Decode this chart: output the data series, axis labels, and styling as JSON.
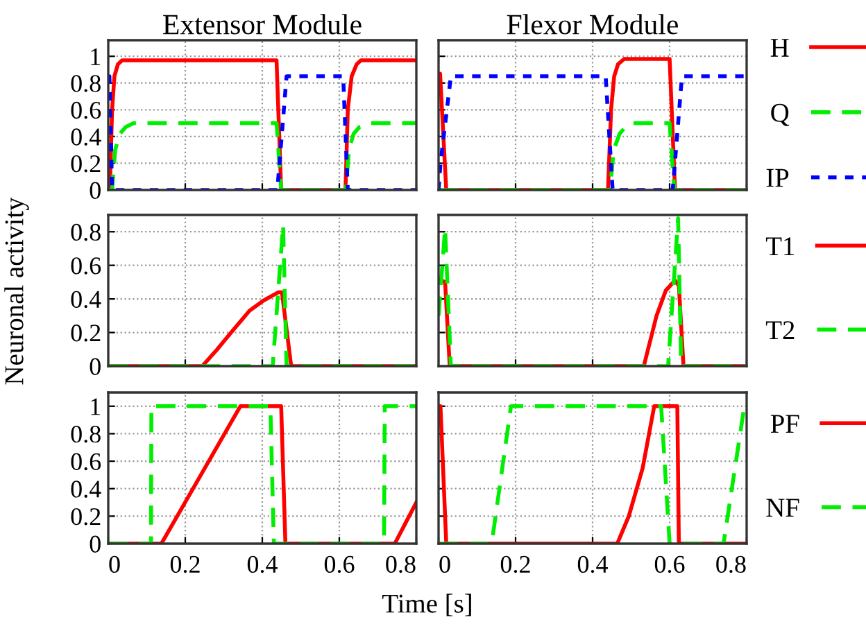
{
  "chart_data": [
    {
      "type": "line",
      "title": "Extensor Module",
      "xlim": [
        0,
        0.8
      ],
      "xticks": [
        0,
        0.2,
        0.4,
        0.6,
        0.8
      ],
      "ylim": [
        0,
        1.12
      ],
      "yticks": [
        0,
        0.2,
        0.4,
        0.6,
        0.8,
        1
      ],
      "grid": true,
      "tick_labels": "y",
      "series": [
        {
          "color": "#ff0000",
          "line_style": "solid",
          "x": [
            0,
            0.004,
            0.01,
            0.016,
            0.025,
            0.036,
            0.437,
            0.449,
            0.61,
            0.616,
            0.622,
            0.632,
            0.645,
            0.656,
            0.8
          ],
          "values": [
            0,
            0,
            0.6,
            0.85,
            0.94,
            0.97,
            0.97,
            0,
            0,
            0,
            0.6,
            0.85,
            0.94,
            0.97,
            0.97
          ]
        },
        {
          "color": "#00ee00",
          "line_style": "dashed",
          "x": [
            0,
            0.01,
            0.018,
            0.03,
            0.045,
            0.066,
            0.437,
            0.449,
            0.617,
            0.625,
            0.637,
            0.652,
            0.68,
            0.8
          ],
          "values": [
            0,
            0,
            0.3,
            0.42,
            0.47,
            0.5,
            0.5,
            0,
            0,
            0.3,
            0.42,
            0.47,
            0.5,
            0.5
          ]
        },
        {
          "color": "#0000ff",
          "line_style": "dotted",
          "x": [
            0,
            0.003,
            0.01,
            0.439,
            0.463,
            0.61,
            0.622,
            0.8
          ],
          "values": [
            0.85,
            0.85,
            0,
            0,
            0.85,
            0.85,
            0,
            0
          ]
        }
      ]
    },
    {
      "type": "line",
      "title": "Flexor Module",
      "xlim": [
        0,
        0.8
      ],
      "xticks": [
        0,
        0.2,
        0.4,
        0.6,
        0.8
      ],
      "ylim": [
        0,
        1.12
      ],
      "yticks": [
        0,
        0.2,
        0.4,
        0.6,
        0.8,
        1
      ],
      "grid": true,
      "tick_labels": false,
      "legend": "right",
      "series": [
        {
          "name": "H",
          "color": "#ff0000",
          "line_style": "solid",
          "x": [
            0,
            0.004,
            0.02,
            0.44,
            0.448,
            0.456,
            0.466,
            0.482,
            0.6,
            0.614,
            0.8
          ],
          "values": [
            0.87,
            0.87,
            0,
            0,
            0.6,
            0.85,
            0.94,
            0.98,
            0.98,
            0,
            0
          ]
        },
        {
          "name": "Q",
          "color": "#00ee00",
          "line_style": "dashed",
          "x": [
            0,
            0.445,
            0.455,
            0.47,
            0.485,
            0.506,
            0.6,
            0.612,
            0.8
          ],
          "values": [
            0,
            0,
            0.3,
            0.42,
            0.47,
            0.5,
            0.5,
            0,
            0
          ]
        },
        {
          "name": "IP",
          "color": "#0000ff",
          "line_style": "dotted",
          "x": [
            0,
            0.005,
            0.032,
            0.434,
            0.452,
            0.608,
            0.632,
            0.8
          ],
          "values": [
            0,
            0.2,
            0.85,
            0.85,
            0,
            0,
            0.85,
            0.85
          ]
        }
      ]
    },
    {
      "type": "line",
      "ylabel": "Neuronal activity",
      "xlim": [
        0,
        0.8
      ],
      "xticks": [
        0,
        0.2,
        0.4,
        0.6,
        0.8
      ],
      "ylim": [
        0,
        0.9
      ],
      "yticks": [
        0,
        0.2,
        0.4,
        0.6,
        0.8
      ],
      "grid": true,
      "tick_labels": "y",
      "series": [
        {
          "color": "#ff0000",
          "line_style": "solid",
          "x": [
            0,
            0.244,
            0.283,
            0.319,
            0.367,
            0.403,
            0.442,
            0.451,
            0.475,
            0.8
          ],
          "values": [
            0,
            0,
            0.1,
            0.2,
            0.33,
            0.39,
            0.44,
            0.44,
            0,
            0
          ]
        },
        {
          "color": "#00ee00",
          "line_style": "dashed",
          "x": [
            0,
            0.427,
            0.454,
            0.463,
            0.8
          ],
          "values": [
            0,
            0,
            0.84,
            0,
            0
          ]
        }
      ]
    },
    {
      "type": "line",
      "xlim": [
        0,
        0.8
      ],
      "xticks": [
        0,
        0.2,
        0.4,
        0.6,
        0.8
      ],
      "ylim": [
        0,
        0.9
      ],
      "yticks": [
        0,
        0.2,
        0.4,
        0.6,
        0.8
      ],
      "grid": true,
      "tick_labels": false,
      "legend": "right",
      "series": [
        {
          "name": "T1",
          "color": "#ff0000",
          "line_style": "solid",
          "x": [
            0,
            0.017,
            0.029,
            0.533,
            0.566,
            0.59,
            0.614,
            0.624,
            0.636,
            0.8
          ],
          "values": [
            0.52,
            0.5,
            0,
            0,
            0.3,
            0.45,
            0.51,
            0.48,
            0,
            0
          ]
        },
        {
          "name": "T2",
          "color": "#00ee00",
          "line_style": "dashed",
          "x": [
            0,
            0.017,
            0.032,
            0.596,
            0.622,
            0.63,
            0.8
          ],
          "values": [
            0.3,
            0.82,
            0,
            0,
            0.88,
            0,
            0
          ]
        }
      ]
    },
    {
      "type": "line",
      "xlabel": "Time [s]",
      "xlim": [
        0,
        0.8
      ],
      "xticks": [
        0,
        0.2,
        0.4,
        0.6,
        0.8
      ],
      "ylim": [
        0,
        1.1
      ],
      "yticks": [
        0,
        0.2,
        0.4,
        0.6,
        0.8,
        1
      ],
      "grid": true,
      "series": [
        {
          "color": "#ff0000",
          "line_style": "solid",
          "x": [
            0,
            0.138,
            0.343,
            0.449,
            0.46,
            0.744,
            0.8
          ],
          "values": [
            0,
            0,
            1,
            1,
            0,
            0,
            0.3
          ]
        },
        {
          "color": "#00ee00",
          "line_style": "dashed",
          "x": [
            0,
            0.111,
            0.112,
            0.421,
            0.43,
            0.716,
            0.718,
            0.8
          ],
          "values": [
            0,
            0,
            1,
            1,
            0,
            0,
            1,
            1
          ]
        }
      ]
    },
    {
      "type": "line",
      "xlim": [
        0,
        0.8
      ],
      "xticks": [
        0,
        0.2,
        0.4,
        0.6,
        0.8
      ],
      "ylim": [
        0,
        1.1
      ],
      "yticks": [
        0,
        0.2,
        0.4,
        0.6,
        0.8,
        1
      ],
      "grid": true,
      "tick_labels": "x",
      "legend": "right",
      "series": [
        {
          "name": "PF",
          "color": "#ff0000",
          "line_style": "solid",
          "x": [
            0,
            0.005,
            0.02,
            0.464,
            0.494,
            0.53,
            0.56,
            0.62,
            0.624,
            0.8
          ],
          "values": [
            1,
            1,
            0,
            0,
            0.2,
            0.55,
            1,
            1,
            0,
            0
          ]
        },
        {
          "name": "NF",
          "color": "#00ee00",
          "line_style": "dashed",
          "x": [
            0,
            0.138,
            0.188,
            0.578,
            0.6,
            0.74,
            0.794,
            0.8
          ],
          "values": [
            0,
            0,
            1,
            1,
            0,
            0,
            1,
            1
          ]
        }
      ]
    }
  ]
}
